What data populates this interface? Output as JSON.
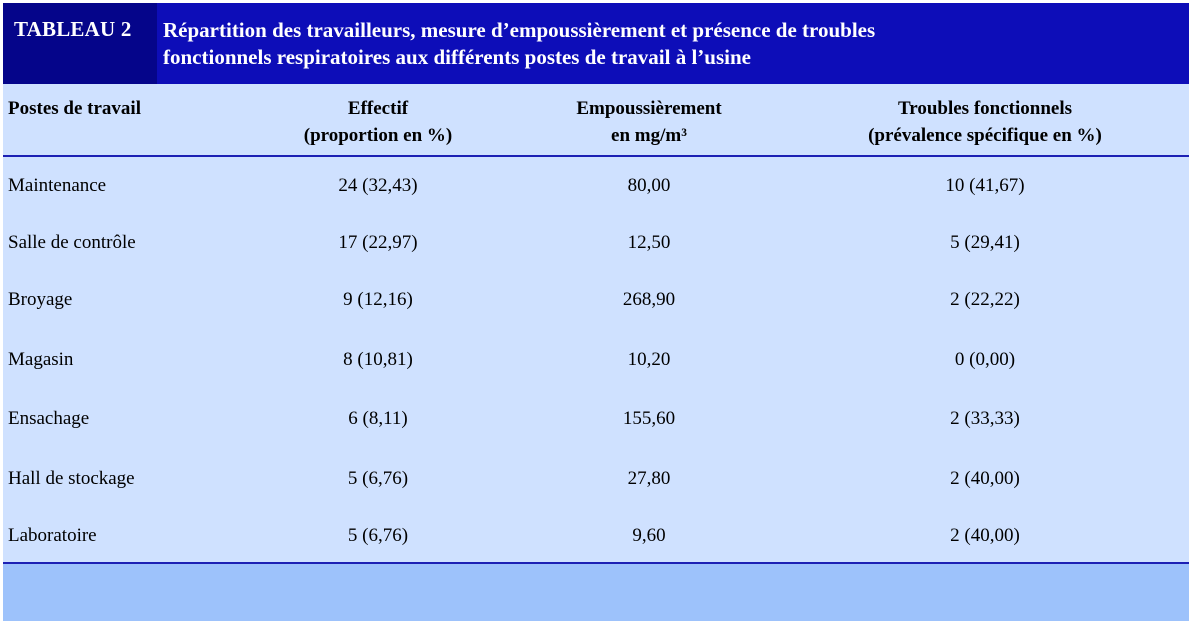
{
  "table": {
    "tag": "TABLEAU 2",
    "title_line1": "Répartition des travailleurs, mesure d’empoussièrement et présence de troubles",
    "title_line2": "fonctionnels respiratoires aux différents postes de travail à l’usine",
    "columns": [
      {
        "line1": "Postes de travail",
        "line2": ""
      },
      {
        "line1": "Effectif",
        "line2": "(proportion en %)"
      },
      {
        "line1": "Empoussièrement",
        "line2": "en mg/m³"
      },
      {
        "line1": "Troubles fonctionnels",
        "line2": "(prévalence spécifique en %)"
      }
    ],
    "rows": [
      [
        "Maintenance",
        "24 (32,43)",
        "80,00",
        "10 (41,67)"
      ],
      [
        "Salle de contrôle",
        "17 (22,97)",
        "12,50",
        "5 (29,41)"
      ],
      [
        "Broyage",
        "9 (12,16)",
        "268,90",
        "2 (22,22)"
      ],
      [
        "Magasin",
        "8 (10,81)",
        "10,20",
        "0 (0,00)"
      ],
      [
        "Ensachage",
        "6 (8,11)",
        "155,60",
        "2 (33,33)"
      ],
      [
        "Hall de stockage",
        "5 (6,76)",
        "27,80",
        "2 (40,00)"
      ],
      [
        "Laboratoire",
        "5 (6,76)",
        "9,60",
        "2 (40,00)"
      ]
    ]
  },
  "colors": {
    "header_bg": "#0d0db8",
    "tag_bg": "#05058a",
    "table_bg": "#cfe1ff",
    "rule": "#1c20b4",
    "footer_bg": "#9dc2fb"
  }
}
